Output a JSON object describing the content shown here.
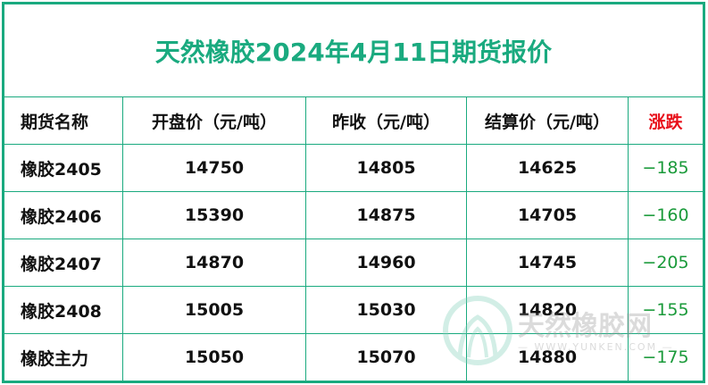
{
  "title": "天然橡胶2024年4月11日期货报价",
  "headers": [
    "期货名称",
    "开盘价（元/吨）",
    "昨收（元/吨）",
    "结算价（元/吨）",
    "涨跌"
  ],
  "rows": [
    [
      "橡胶2405",
      "14750",
      "14805",
      "14625",
      "−185"
    ],
    [
      "橡胶2406",
      "15390",
      "14875",
      "14705",
      "−160"
    ],
    [
      "橡胶2407",
      "14870",
      "14960",
      "14745",
      "−205"
    ],
    [
      "橡胶2408",
      "15005",
      "15030",
      "14820",
      "−155"
    ],
    [
      "橡胶主力",
      "15050",
      "15070",
      "14880",
      "−175"
    ]
  ],
  "watermark": {
    "text": "天然橡胶网",
    "url": "— WWW.YUNKEN.COM —"
  },
  "colors": {
    "border": "#1aaa7f",
    "title": "#1aaa7f",
    "change_header": "#e8101a",
    "change_values": "#1a9a3a"
  }
}
